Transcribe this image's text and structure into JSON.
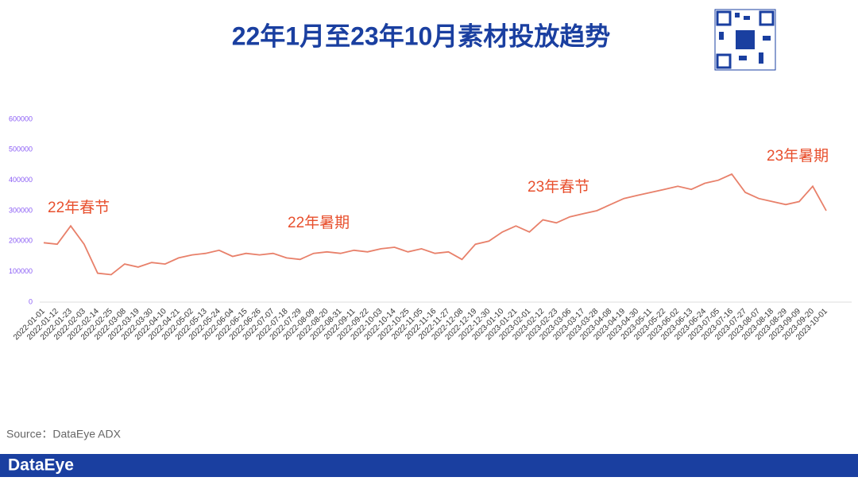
{
  "chart_data": {
    "type": "line",
    "title": "22年1月至23年10月素材投放趋势",
    "categories": [
      "2022-01-01",
      "2022-01-12",
      "2022-01-23",
      "2022-02-03",
      "2022-02-14",
      "2022-02-25",
      "2022-03-08",
      "2022-03-19",
      "2022-03-30",
      "2022-04-10",
      "2022-04-21",
      "2022-05-02",
      "2022-05-13",
      "2022-05-24",
      "2022-06-04",
      "2022-06-15",
      "2022-06-26",
      "2022-07-07",
      "2022-07-18",
      "2022-07-29",
      "2022-08-09",
      "2022-08-20",
      "2022-08-31",
      "2022-09-11",
      "2022-09-22",
      "2022-10-03",
      "2022-10-14",
      "2022-10-25",
      "2022-11-05",
      "2022-11-16",
      "2022-11-27",
      "2022-12-08",
      "2022-12-19",
      "2022-12-30",
      "2023-01-10",
      "2023-01-21",
      "2023-02-01",
      "2023-02-12",
      "2023-02-23",
      "2023-03-06",
      "2023-03-17",
      "2023-03-28",
      "2023-04-08",
      "2023-04-19",
      "2023-04-30",
      "2023-05-11",
      "2023-05-22",
      "2023-06-02",
      "2023-06-13",
      "2023-06-24",
      "2023-07-05",
      "2023-07-16",
      "2023-07-27",
      "2023-08-07",
      "2023-08-18",
      "2023-08-29",
      "2023-09-09",
      "2023-09-20",
      "2023-10-01"
    ],
    "values": [
      195000,
      190000,
      250000,
      190000,
      95000,
      90000,
      125000,
      115000,
      130000,
      125000,
      145000,
      155000,
      160000,
      170000,
      150000,
      160000,
      155000,
      160000,
      145000,
      140000,
      160000,
      165000,
      160000,
      170000,
      165000,
      175000,
      180000,
      165000,
      175000,
      160000,
      165000,
      140000,
      190000,
      200000,
      230000,
      250000,
      230000,
      270000,
      260000,
      280000,
      290000,
      300000,
      320000,
      340000,
      350000,
      360000,
      370000,
      380000,
      370000,
      390000,
      400000,
      420000,
      360000,
      340000,
      330000,
      320000,
      330000,
      380000,
      300000
    ],
    "color": "#e8806a",
    "ylim": [
      0,
      600000
    ],
    "yticks": [
      0,
      100000,
      200000,
      300000,
      400000,
      500000,
      600000
    ],
    "annotations": [
      "22年春节",
      "22年暑期",
      "23年春节",
      "23年暑期"
    ],
    "source": "Source：DataEye ADX",
    "brand": "DataEye"
  }
}
